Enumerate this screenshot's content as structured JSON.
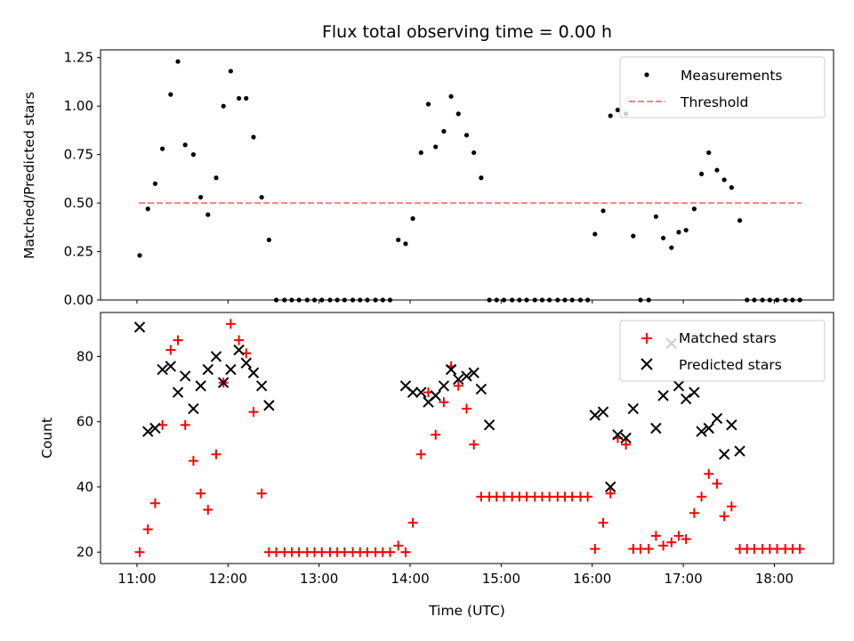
{
  "title": "Flux total observing time = 0.00 h",
  "colors": {
    "measure": "#000000",
    "threshold": "#ff8080",
    "matched": "#ff0000",
    "predicted": "#000000"
  },
  "top": {
    "ylabel": "Matched/Predicted stars",
    "yticks": [
      "0.00",
      "0.25",
      "0.50",
      "0.75",
      "1.00",
      "1.25"
    ],
    "ylim": [
      0,
      1.29
    ],
    "legend": {
      "measurements": "Measurements",
      "threshold": "Threshold"
    }
  },
  "bottom": {
    "ylabel": "Count",
    "xlabel": "Time (UTC)",
    "yticks": [
      "20",
      "40",
      "60",
      "80"
    ],
    "ylim": [
      16.5,
      93.5
    ],
    "xticks": [
      "11:00",
      "12:00",
      "13:00",
      "14:00",
      "15:00",
      "16:00",
      "17:00",
      "18:00"
    ],
    "legend": {
      "matched": "Matched stars",
      "predicted": "Predicted stars"
    }
  },
  "chart_data": [
    {
      "type": "scatter",
      "title": "Flux total observing time = 0.00 h",
      "ylabel": "Matched/Predicted stars",
      "x_unit": "hours UTC",
      "xlim": [
        10.6,
        18.65
      ],
      "ylim": [
        0,
        1.29
      ],
      "threshold": {
        "name": "Threshold",
        "value": 0.5,
        "x": [
          11.02,
          18.3
        ]
      },
      "series": [
        {
          "name": "Measurements",
          "x": [
            11.03,
            11.12,
            11.2,
            11.28,
            11.37,
            11.45,
            11.53,
            11.62,
            11.7,
            11.78,
            11.87,
            11.95,
            12.03,
            12.12,
            12.2,
            12.28,
            12.37,
            12.45,
            12.53,
            12.62,
            12.7,
            12.78,
            12.87,
            12.95,
            13.03,
            13.12,
            13.2,
            13.28,
            13.37,
            13.45,
            13.53,
            13.62,
            13.7,
            13.78,
            13.87,
            13.95,
            14.03,
            14.12,
            14.2,
            14.28,
            14.37,
            14.45,
            14.53,
            14.62,
            14.7,
            14.78,
            14.87,
            14.95,
            15.03,
            15.12,
            15.2,
            15.28,
            15.37,
            15.45,
            15.53,
            15.62,
            15.7,
            15.78,
            15.87,
            15.95,
            16.03,
            16.12,
            16.2,
            16.28,
            16.37,
            16.45,
            16.53,
            16.62,
            16.7,
            16.78,
            16.87,
            16.95,
            17.03,
            17.12,
            17.2,
            17.28,
            17.37,
            17.45,
            17.53,
            17.62,
            17.7,
            17.78,
            17.87,
            17.95,
            18.03,
            18.12,
            18.2,
            18.28
          ],
          "y": [
            0.23,
            0.47,
            0.6,
            0.78,
            1.06,
            1.23,
            0.8,
            0.75,
            0.53,
            0.44,
            0.63,
            1.0,
            1.18,
            1.04,
            1.04,
            0.84,
            0.53,
            0.31,
            0,
            0,
            0,
            0,
            0,
            0,
            0,
            0,
            0,
            0,
            0,
            0,
            0,
            0,
            0,
            0,
            0.31,
            0.29,
            0.42,
            0.76,
            1.01,
            0.79,
            0.87,
            1.05,
            0.96,
            0.85,
            0.76,
            0.63,
            0,
            0,
            0,
            0,
            0,
            0,
            0,
            0,
            0,
            0,
            0,
            0,
            0,
            0,
            0.34,
            0.46,
            0.95,
            0.98,
            0.96,
            0.33,
            0,
            0,
            0.43,
            0.32,
            0.27,
            0.35,
            0.36,
            0.47,
            0.65,
            0.76,
            0.67,
            0.62,
            0.58,
            0.41,
            0,
            0,
            0,
            0,
            0,
            0,
            0,
            0
          ]
        }
      ]
    },
    {
      "type": "scatter",
      "xlabel": "Time (UTC)",
      "ylabel": "Count",
      "x_unit": "hours UTC",
      "xlim": [
        10.6,
        18.65
      ],
      "ylim": [
        16.5,
        93.5
      ],
      "series": [
        {
          "name": "Matched stars",
          "x": [
            11.03,
            11.12,
            11.2,
            11.28,
            11.37,
            11.45,
            11.53,
            11.62,
            11.7,
            11.78,
            11.87,
            11.95,
            12.03,
            12.12,
            12.2,
            12.28,
            12.37,
            12.45,
            12.53,
            12.62,
            12.7,
            12.78,
            12.87,
            12.95,
            13.03,
            13.12,
            13.2,
            13.28,
            13.37,
            13.45,
            13.53,
            13.62,
            13.7,
            13.78,
            13.87,
            13.95,
            14.03,
            14.12,
            14.2,
            14.28,
            14.37,
            14.45,
            14.53,
            14.62,
            14.7,
            14.78,
            14.87,
            14.95,
            15.03,
            15.12,
            15.2,
            15.28,
            15.37,
            15.45,
            15.53,
            15.62,
            15.7,
            15.78,
            15.87,
            15.95,
            16.03,
            16.12,
            16.2,
            16.28,
            16.37,
            16.45,
            16.53,
            16.62,
            16.7,
            16.78,
            16.87,
            16.95,
            17.03,
            17.12,
            17.2,
            17.28,
            17.37,
            17.45,
            17.53,
            17.62,
            17.7,
            17.78,
            17.87,
            17.95,
            18.03,
            18.12,
            18.2,
            18.28
          ],
          "y": [
            20,
            27,
            35,
            59,
            82,
            85,
            59,
            48,
            38,
            33,
            50,
            72,
            90,
            85,
            81,
            63,
            38,
            20,
            20,
            20,
            20,
            20,
            20,
            20,
            20,
            20,
            20,
            20,
            20,
            20,
            20,
            20,
            20,
            20,
            22,
            20,
            29,
            50,
            69,
            56,
            66,
            77,
            71,
            64,
            53,
            37,
            37,
            37,
            37,
            37,
            37,
            37,
            37,
            37,
            37,
            37,
            37,
            37,
            37,
            37,
            21,
            29,
            38,
            55,
            53,
            21,
            21,
            21,
            25,
            22,
            23,
            25,
            24,
            32,
            37,
            44,
            41,
            31,
            34,
            21,
            21,
            21,
            21,
            21,
            21,
            21,
            21,
            21
          ]
        },
        {
          "name": "Predicted stars",
          "x": [
            11.03,
            11.12,
            11.2,
            11.28,
            11.37,
            11.45,
            11.53,
            11.62,
            11.7,
            11.78,
            11.87,
            11.95,
            12.03,
            12.12,
            12.2,
            12.28,
            12.37,
            12.45,
            13.95,
            14.03,
            14.12,
            14.2,
            14.28,
            14.37,
            14.45,
            14.53,
            14.62,
            14.7,
            14.78,
            14.87,
            16.03,
            16.12,
            16.2,
            16.28,
            16.37,
            16.45,
            16.7,
            16.78,
            16.87,
            16.95,
            17.03,
            17.12,
            17.2,
            17.28,
            17.37,
            17.45,
            17.53,
            17.62
          ],
          "y": [
            89,
            57,
            58,
            76,
            77,
            69,
            74,
            64,
            71,
            76,
            80,
            72,
            76,
            82,
            78,
            75,
            71,
            65,
            71,
            69,
            69,
            66,
            68,
            71,
            76,
            73,
            74,
            75,
            70,
            59,
            62,
            63,
            40,
            56,
            55,
            64,
            58,
            68,
            84,
            71,
            67,
            69,
            57,
            58,
            61,
            50,
            59,
            51
          ]
        }
      ]
    }
  ]
}
